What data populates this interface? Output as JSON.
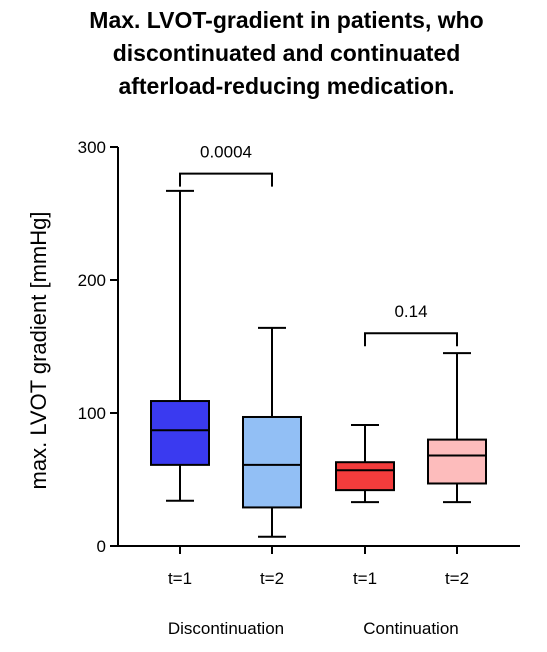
{
  "chart_data": {
    "type": "box",
    "title_lines": [
      "Max. LVOT-gradient in patients, who",
      "discontinuated and continuated",
      "afterload-reducing medication."
    ],
    "xlabel": "",
    "ylabel": "max. LVOT gradient [mmHg]",
    "ylim": [
      0,
      300
    ],
    "yticks": [
      0,
      100,
      200,
      300
    ],
    "grid": false,
    "groups": [
      {
        "label": "Discontinuation",
        "categories": [
          0,
          1
        ]
      },
      {
        "label": "Continuation",
        "categories": [
          2,
          3
        ]
      }
    ],
    "categories": [
      "t=1",
      "t=2",
      "t=1",
      "t=2"
    ],
    "boxes": [
      {
        "min": 34,
        "q1": 61,
        "median": 87,
        "q3": 109,
        "max": 267,
        "color": "#3a3af0"
      },
      {
        "min": 7,
        "q1": 29,
        "median": 61,
        "q3": 97,
        "max": 164,
        "color": "#92bff5"
      },
      {
        "min": 33,
        "q1": 42,
        "median": 57,
        "q3": 63,
        "max": 91,
        "color": "#f43c3c"
      },
      {
        "min": 33,
        "q1": 47,
        "median": 68,
        "q3": 80,
        "max": 145,
        "color": "#fdbcbc"
      }
    ],
    "annotations": [
      {
        "label": "0.0004",
        "from": 0,
        "to": 1,
        "y": 280
      },
      {
        "label": "0.14",
        "from": 2,
        "to": 3,
        "y": 160
      }
    ]
  }
}
